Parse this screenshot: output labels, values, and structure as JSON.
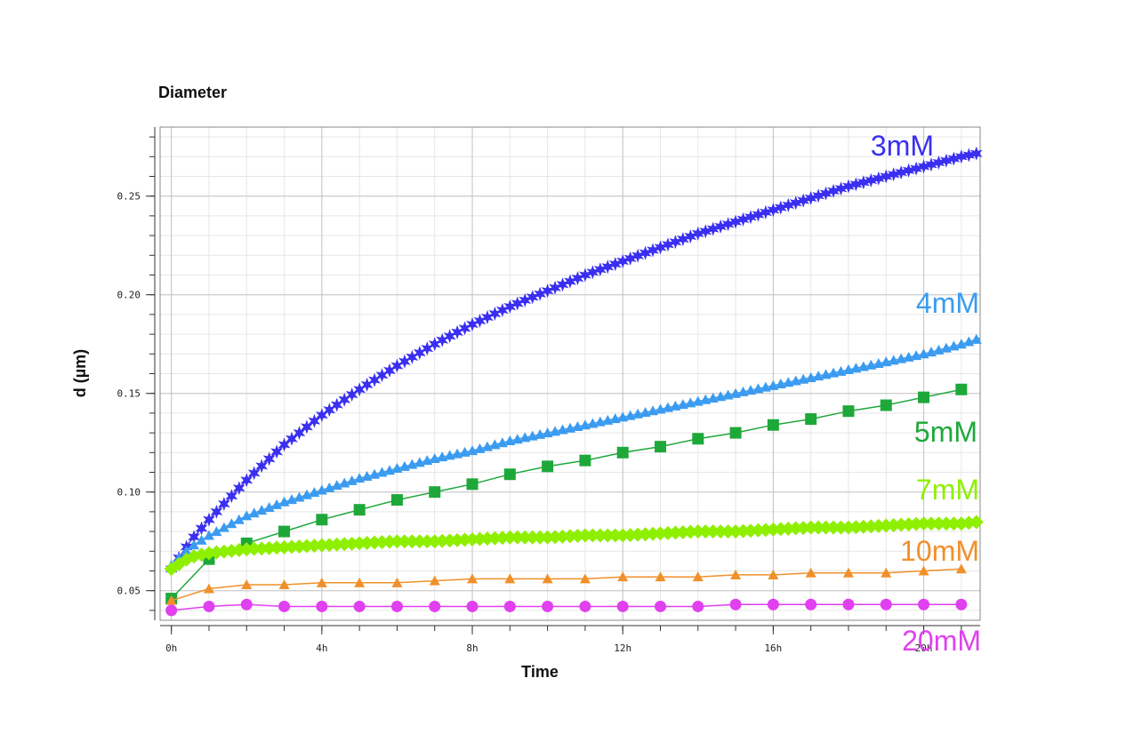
{
  "chart_data": {
    "type": "line",
    "title": "Diameter",
    "xlabel": "Time",
    "ylabel": "d (µm)",
    "xlim": [
      -0.3,
      21.5
    ],
    "ylim": [
      0.035,
      0.285
    ],
    "x_unit": "h",
    "xticks": [
      0,
      4,
      8,
      12,
      16,
      20
    ],
    "xtick_labels": [
      "0h",
      "4h",
      "8h",
      "12h",
      "16h",
      "20h"
    ],
    "yticks": [
      0.05,
      0.1,
      0.15,
      0.2,
      0.25
    ],
    "ytick_labels": [
      "0.05",
      "0.10",
      "0.15",
      "0.20",
      "0.25"
    ],
    "grid": true,
    "legend": "inline labels at right end of each series",
    "series": [
      {
        "name": "3mM",
        "color": "#3a2ff0",
        "marker": "star",
        "x": [
          0,
          0.5,
          1,
          2,
          3,
          4,
          5,
          6,
          7,
          8,
          9,
          10,
          11,
          12,
          13,
          14,
          15,
          16,
          17,
          18,
          19,
          20,
          21,
          21.5
        ],
        "values": [
          0.061,
          0.075,
          0.086,
          0.106,
          0.124,
          0.139,
          0.152,
          0.164,
          0.175,
          0.185,
          0.194,
          0.202,
          0.21,
          0.217,
          0.224,
          0.231,
          0.237,
          0.243,
          0.249,
          0.255,
          0.26,
          0.265,
          0.27,
          0.272
        ]
      },
      {
        "name": "4mM",
        "color": "#3a9bf0",
        "marker": "triangle",
        "x": [
          0,
          0.5,
          1,
          2,
          3,
          4,
          5,
          6,
          7,
          8,
          9,
          10,
          11,
          12,
          13,
          14,
          15,
          16,
          17,
          18,
          19,
          20,
          21,
          21.5
        ],
        "values": [
          0.063,
          0.072,
          0.078,
          0.088,
          0.095,
          0.101,
          0.107,
          0.112,
          0.117,
          0.121,
          0.126,
          0.13,
          0.134,
          0.138,
          0.142,
          0.146,
          0.15,
          0.154,
          0.158,
          0.162,
          0.166,
          0.17,
          0.175,
          0.178
        ]
      },
      {
        "name": "5mM",
        "color": "#1ea83a",
        "marker": "square",
        "x": [
          0,
          1,
          2,
          3,
          4,
          5,
          6,
          7,
          8,
          9,
          10,
          11,
          12,
          13,
          14,
          15,
          16,
          17,
          18,
          19,
          20,
          21
        ],
        "values": [
          0.046,
          0.066,
          0.074,
          0.08,
          0.086,
          0.091,
          0.096,
          0.1,
          0.104,
          0.109,
          0.113,
          0.116,
          0.12,
          0.123,
          0.127,
          0.13,
          0.134,
          0.137,
          0.141,
          0.144,
          0.148,
          0.152
        ]
      },
      {
        "name": "7mM",
        "color": "#8ef000",
        "marker": "diamond",
        "x": [
          0,
          0.5,
          1,
          2,
          3,
          4,
          5,
          6,
          7,
          8,
          9,
          10,
          11,
          12,
          13,
          14,
          15,
          16,
          17,
          18,
          19,
          20,
          21,
          21.5
        ],
        "values": [
          0.061,
          0.067,
          0.069,
          0.071,
          0.072,
          0.073,
          0.074,
          0.075,
          0.075,
          0.076,
          0.077,
          0.077,
          0.078,
          0.078,
          0.079,
          0.08,
          0.08,
          0.081,
          0.082,
          0.082,
          0.083,
          0.084,
          0.084,
          0.085
        ]
      },
      {
        "name": "10mM",
        "color": "#f0902a",
        "marker": "triangle",
        "x": [
          0,
          1,
          2,
          3,
          4,
          5,
          6,
          7,
          8,
          9,
          10,
          11,
          12,
          13,
          14,
          15,
          16,
          17,
          18,
          19,
          20,
          21
        ],
        "values": [
          0.045,
          0.051,
          0.053,
          0.053,
          0.054,
          0.054,
          0.054,
          0.055,
          0.056,
          0.056,
          0.056,
          0.056,
          0.057,
          0.057,
          0.057,
          0.058,
          0.058,
          0.059,
          0.059,
          0.059,
          0.06,
          0.061
        ]
      },
      {
        "name": "20mM",
        "color": "#e040f0",
        "marker": "circle",
        "x": [
          0,
          1,
          2,
          3,
          4,
          5,
          6,
          7,
          8,
          9,
          10,
          11,
          12,
          13,
          14,
          15,
          16,
          17,
          18,
          19,
          20,
          21
        ],
        "values": [
          0.04,
          0.042,
          0.043,
          0.042,
          0.042,
          0.042,
          0.042,
          0.042,
          0.042,
          0.042,
          0.042,
          0.042,
          0.042,
          0.042,
          0.042,
          0.043,
          0.043,
          0.043,
          0.043,
          0.043,
          0.043,
          0.043
        ]
      }
    ]
  }
}
